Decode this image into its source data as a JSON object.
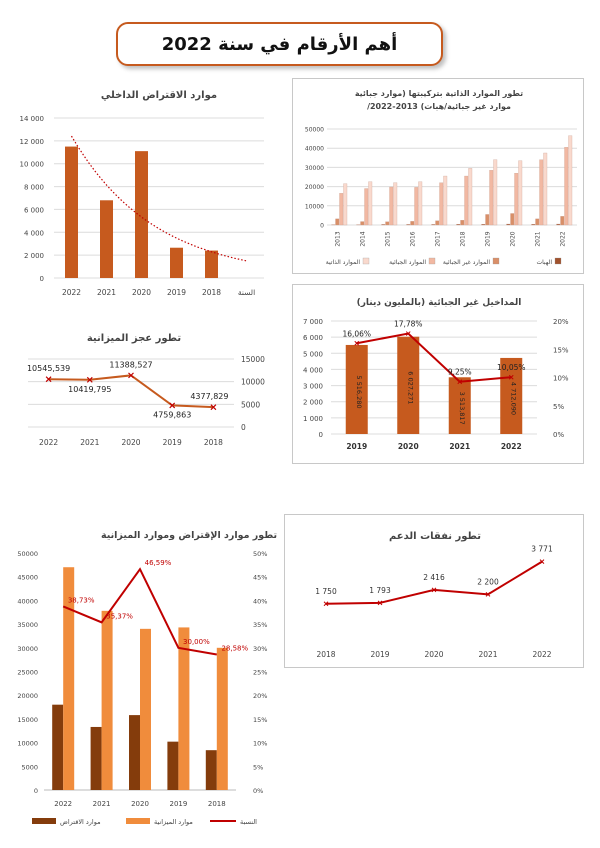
{
  "page": {
    "title": "أهم الأرقام في سنة 2022"
  },
  "chart_data": [
    {
      "id": "internal_loans",
      "type": "bar",
      "title": "موارد الاقتراض الداخلي",
      "xlabel": "السنة",
      "categories": [
        "2022",
        "2021",
        "2020",
        "2019",
        "2018"
      ],
      "values": [
        11500,
        6800,
        11100,
        2650,
        2400
      ],
      "ylim": [
        0,
        14000
      ],
      "yticks": [
        "0",
        "2 000",
        "4 000",
        "6 000",
        "8 000",
        "10 000",
        "12 000",
        "14 000"
      ],
      "trendline": "exponential, dotted",
      "grid": true,
      "colors": {
        "bar": "#c65a1e",
        "trend": "#c00000"
      }
    },
    {
      "id": "own_resources",
      "type": "bar",
      "title": "تطور الموارد الذاتية بتركيبتها (موارد جبائية /موارد غير جبائية/هبات) 2013-2022",
      "categories": [
        "2013",
        "2014",
        "2015",
        "2016",
        "2017",
        "2018",
        "2019",
        "2020",
        "2021",
        "2022"
      ],
      "ylim": [
        0,
        50000
      ],
      "yticks": [
        "0",
        "10000",
        "20000",
        "30000",
        "40000",
        "50000"
      ],
      "series": [
        {
          "name": "الهبات",
          "color": "#a0522d",
          "values": [
            200,
            200,
            300,
            300,
            300,
            400,
            400,
            500,
            400,
            500
          ]
        },
        {
          "name": "الموارد غير الجبائية",
          "color": "#d98f68",
          "values": [
            3200,
            1800,
            1700,
            1900,
            2200,
            2500,
            5500,
            6000,
            3200,
            4500
          ]
        },
        {
          "name": "الموارد الجبائية",
          "color": "#f2b8a2",
          "values": [
            16500,
            19000,
            19800,
            19600,
            22000,
            25500,
            28500,
            27000,
            34000,
            40500
          ]
        },
        {
          "name": "الموارد الذاتية",
          "color": "#f9d9cd",
          "values": [
            21500,
            22500,
            22000,
            22500,
            25500,
            29500,
            34000,
            33500,
            37500,
            46500
          ]
        }
      ],
      "legend": "bottom",
      "grid": true
    },
    {
      "id": "budget_deficit",
      "type": "line",
      "title": "تطور عجز الميزانية",
      "categories": [
        "2022",
        "2021",
        "2020",
        "2019",
        "2018"
      ],
      "values": [
        10545.539,
        10419.795,
        11388.527,
        4759.863,
        4377.829
      ],
      "labels": [
        "10545,539",
        "10419,795",
        "11388,527",
        "4759,863",
        "4377,829"
      ],
      "ylim": [
        0,
        15000
      ],
      "yticks": [
        "0",
        "5000",
        "10000",
        "15000"
      ],
      "grid": true,
      "colors": {
        "line": "#c65a1e",
        "marker": "#c00000"
      }
    },
    {
      "id": "non_tax_revenue",
      "type": "bar",
      "title": "المداخيل غير الجبائية (بالمليون دينار)",
      "categories": [
        "2019",
        "2020",
        "2021",
        "2022"
      ],
      "values": [
        5516.28,
        6027.271,
        3513.817,
        4712.09
      ],
      "value_labels": [
        "5 516,280",
        "6 027,271",
        "3 513,817",
        "4 712,090"
      ],
      "ylim": [
        0,
        7000
      ],
      "yticks": [
        "0",
        "1 000",
        "2 000",
        "3 000",
        "4 000",
        "5 000",
        "6 000",
        "7 000"
      ],
      "series_line": {
        "values": [
          16.06,
          17.78,
          9.25,
          10.05
        ],
        "labels": [
          "16,06%",
          "17,78%",
          "9,25%",
          "10,05%"
        ]
      },
      "y2lim": [
        0,
        20
      ],
      "y2ticks": [
        "0%",
        "5%",
        "10%",
        "15%",
        "20%"
      ],
      "grid": true,
      "colors": {
        "bar": "#c65a1e",
        "line": "#c00000"
      }
    },
    {
      "id": "loans_vs_budget",
      "type": "bar",
      "title": "تطور موارد الإقتراض وموارد الميزانية",
      "categories": [
        "2022",
        "2021",
        "2020",
        "2019",
        "2018"
      ],
      "ylim": [
        0,
        50000
      ],
      "yticks": [
        "0",
        "5000",
        "10000",
        "15000",
        "20000",
        "25000",
        "30000",
        "35000",
        "40000",
        "45000",
        "50000"
      ],
      "y2lim": [
        0,
        50
      ],
      "y2ticks": [
        "0%",
        "5%",
        "10%",
        "15%",
        "20%",
        "25%",
        "30%",
        "35%",
        "40%",
        "45%",
        "50%"
      ],
      "series": [
        {
          "name": "موارد الاقتراض",
          "color": "#843c0c",
          "values": [
            18000,
            13300,
            15800,
            10200,
            8400
          ]
        },
        {
          "name": "موارد الميزانية",
          "color": "#f08c3c",
          "values": [
            47000,
            37800,
            34000,
            34300,
            30000
          ]
        }
      ],
      "series_line": {
        "name": "النسبة",
        "color": "#c00000",
        "values": [
          38.73,
          35.37,
          46.59,
          30.0,
          28.58
        ],
        "labels": [
          "38,73%",
          "35,37%",
          "46,59%",
          "30,00%",
          "28,58%"
        ]
      },
      "legend": "bottom"
    },
    {
      "id": "subsidy_spending",
      "type": "line",
      "title": "تطور نفقات الدعم",
      "categories": [
        "2018",
        "2019",
        "2020",
        "2021",
        "2022"
      ],
      "values": [
        1750,
        1793,
        2416,
        2200,
        3771
      ],
      "labels": [
        "1 750",
        "1 793",
        "2 416",
        "2 200",
        "3 771"
      ],
      "colors": {
        "line": "#c00000"
      }
    }
  ]
}
